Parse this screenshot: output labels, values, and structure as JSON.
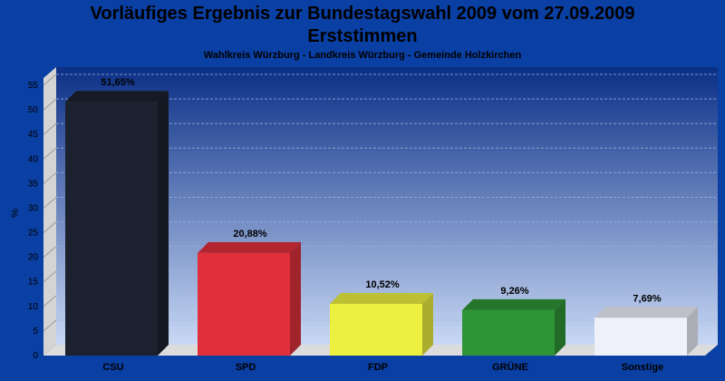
{
  "chart_data": {
    "type": "bar",
    "title": "Vorläufiges Ergebnis zur Bundestagswahl 2009 vom 27.09.2009",
    "subtitle": "Erststimmen",
    "caption": "Wahlkreis Würzburg - Landkreis Würzburg - Gemeinde Holzkirchen",
    "ylabel": "%",
    "xlabel": "",
    "ylim": [
      0,
      58.7
    ],
    "yticks": [
      0,
      5,
      10,
      15,
      20,
      25,
      30,
      35,
      40,
      45,
      50,
      55
    ],
    "grid": true,
    "categories": [
      "CSU",
      "SPD",
      "FDP",
      "GRÜNE",
      "Sonstige"
    ],
    "values": [
      51.65,
      20.88,
      10.52,
      9.26,
      7.69
    ],
    "data_labels": [
      "51,65%",
      "20,88%",
      "10,52%",
      "9,26%",
      "7,69%"
    ],
    "colors": [
      "#1c2130",
      "#e0303c",
      "#eef040",
      "#2e9436",
      "#eef0fa"
    ]
  }
}
